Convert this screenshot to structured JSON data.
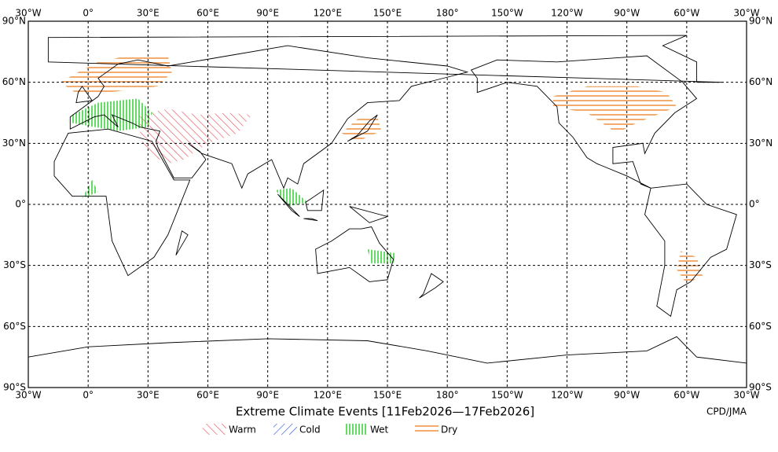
{
  "map": {
    "lon_labels": [
      "30°W",
      "0°",
      "30°E",
      "60°E",
      "90°E",
      "120°E",
      "150°E",
      "180°",
      "150°W",
      "120°W",
      "90°W",
      "60°W",
      "30°W"
    ],
    "lat_labels": [
      "90°N",
      "60°N",
      "30°N",
      "0°",
      "30°S",
      "60°S",
      "90°S"
    ],
    "title": "Extreme Climate Events [11Feb2026—17Feb2026]",
    "credit": "CPD/JMA",
    "legend": [
      {
        "label": "Warm"
      },
      {
        "label": "Cold"
      },
      {
        "label": "Wet"
      },
      {
        "label": "Dry"
      }
    ]
  }
}
